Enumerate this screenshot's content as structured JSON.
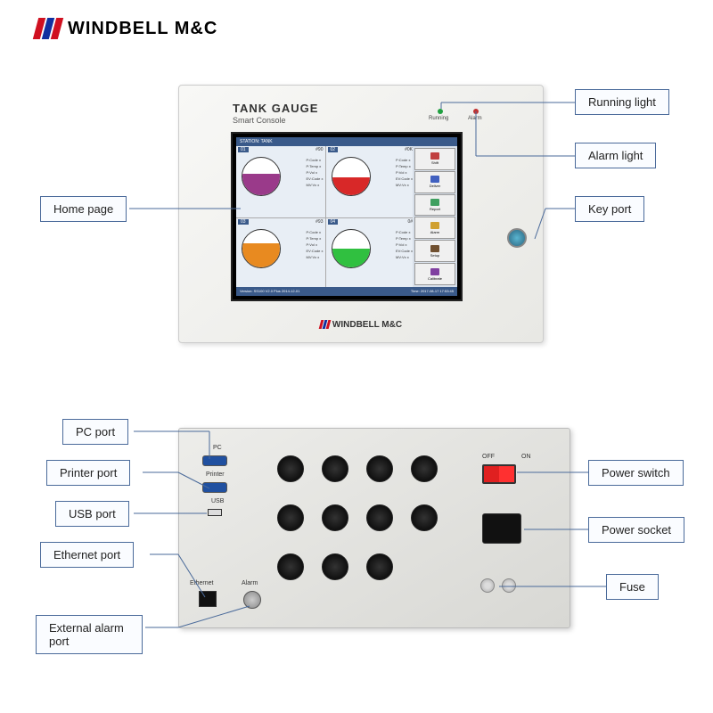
{
  "brand": {
    "name": "WINDBELL M&C",
    "stripe_colors": [
      "#d01020",
      "#1030a0",
      "#d01020"
    ]
  },
  "front_panel": {
    "title": "TANK GAUGE",
    "subtitle": "Smart Console",
    "running_led": {
      "label": "Running",
      "color": "#20a040"
    },
    "alarm_led": {
      "label": "Alarm",
      "color": "#c03030"
    },
    "screen": {
      "header": "STATION: TANK",
      "footer_left": "Version: SS100 V2.0 Plus 2014-12-01",
      "footer_right": "Time: 2017-08-17 17:53:45",
      "tanks": [
        {
          "id": "01",
          "name": "#90",
          "fill_color": "#9a3a8a",
          "fill_pct": 56
        },
        {
          "id": "02",
          "name": "#0K",
          "fill_color": "#d82828",
          "fill_pct": 48
        },
        {
          "id": "03",
          "name": "#93",
          "fill_color": "#e88a20",
          "fill_pct": 62
        },
        {
          "id": "04",
          "name": "0#",
          "fill_color": "#30c040",
          "fill_pct": 50
        }
      ],
      "tank_data_lines": [
        "P:Code x",
        "P:Temp x",
        "P:Vol x",
        "EV:Code x",
        "MV:Vx x"
      ],
      "sidebar_buttons": [
        {
          "label": "Shift",
          "color": "#c04040"
        },
        {
          "label": "Deliver",
          "color": "#4060c0"
        },
        {
          "label": "Report",
          "color": "#40a060"
        },
        {
          "label": "Alarm",
          "color": "#d0a030"
        },
        {
          "label": "Setup",
          "color": "#705030"
        },
        {
          "label": "Calibrate",
          "color": "#8040a0"
        }
      ]
    }
  },
  "rear_panel": {
    "port_labels": {
      "pc": "PC",
      "printer": "Printer",
      "usb": "USB",
      "ethernet": "Ethernet",
      "alarm": "Alarm",
      "off": "OFF",
      "on": "ON"
    }
  },
  "callouts": {
    "home_page": "Home page",
    "running_light": "Running light",
    "alarm_light": "Alarm light",
    "key_port": "Key port",
    "pc_port": "PC port",
    "printer_port": "Printer port",
    "usb_port": "USB port",
    "ethernet_port": "Ethernet port",
    "external_alarm": "External alarm port",
    "power_switch": "Power switch",
    "power_socket": "Power socket",
    "fuse": "Fuse"
  },
  "style": {
    "callout_border": "#4a6a9a",
    "callout_bg": "#fafcff"
  }
}
